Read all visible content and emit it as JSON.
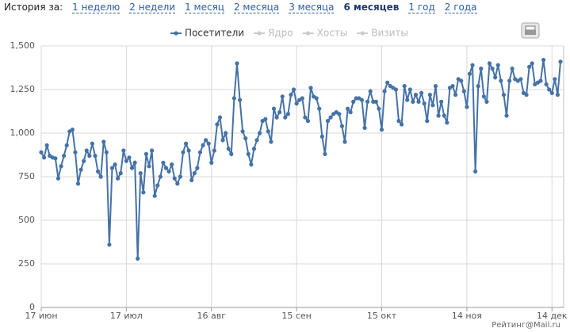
{
  "header": {
    "label": "История за:",
    "periods": [
      "1 неделю",
      "2 недели",
      "1 месяц",
      "2 месяца",
      "3 месяца",
      "6 месяцев",
      "1 год",
      "2 года"
    ],
    "selected_period": 5
  },
  "chart_data": {
    "type": "line",
    "categories": [
      "17 июн",
      null,
      null,
      null,
      null,
      null,
      null,
      null,
      null,
      null,
      null,
      null,
      null,
      null,
      null,
      null,
      null,
      null,
      null,
      null,
      null,
      null,
      null,
      null,
      null,
      null,
      null,
      null,
      null,
      null,
      "17 июл",
      null,
      null,
      null,
      null,
      null,
      null,
      null,
      null,
      null,
      null,
      null,
      null,
      null,
      null,
      null,
      null,
      null,
      null,
      null,
      null,
      null,
      null,
      null,
      null,
      null,
      null,
      null,
      null,
      null,
      "16 авг",
      null,
      null,
      null,
      null,
      null,
      null,
      null,
      null,
      null,
      null,
      null,
      null,
      null,
      null,
      null,
      null,
      null,
      null,
      null,
      null,
      null,
      null,
      null,
      null,
      null,
      null,
      null,
      null,
      null,
      "15 сен",
      null,
      null,
      null,
      null,
      null,
      null,
      null,
      null,
      null,
      null,
      null,
      null,
      null,
      null,
      null,
      null,
      null,
      null,
      null,
      null,
      null,
      null,
      null,
      null,
      null,
      null,
      null,
      null,
      null,
      "15 окт",
      null,
      null,
      null,
      null,
      null,
      null,
      null,
      null,
      null,
      null,
      null,
      null,
      null,
      null,
      null,
      null,
      null,
      null,
      null,
      null,
      null,
      null,
      null,
      null,
      null,
      null,
      null,
      null,
      null,
      "14 ноя",
      null,
      null,
      null,
      null,
      null,
      null,
      null,
      null,
      null,
      null,
      null,
      null,
      null,
      null,
      null,
      null,
      null,
      null,
      null,
      null,
      null,
      null,
      null,
      null,
      null,
      null,
      null,
      null,
      null,
      "14 дек",
      null,
      null,
      null
    ],
    "series": [
      {
        "name": "Посетители",
        "color": "#4572a7",
        "values": [
          890,
          860,
          930,
          870,
          860,
          855,
          740,
          810,
          870,
          930,
          1010,
          1020,
          890,
          710,
          790,
          840,
          900,
          870,
          940,
          870,
          780,
          750,
          950,
          890,
          360,
          800,
          820,
          740,
          770,
          900,
          840,
          860,
          800,
          830,
          280,
          770,
          660,
          880,
          810,
          900,
          640,
          700,
          750,
          830,
          800,
          780,
          820,
          740,
          710,
          750,
          890,
          940,
          900,
          730,
          770,
          800,
          890,
          930,
          960,
          940,
          830,
          900,
          1050,
          1090,
          960,
          1000,
          910,
          880,
          1200,
          1400,
          1190,
          1010,
          970,
          880,
          820,
          910,
          960,
          1000,
          1070,
          1080,
          1010,
          950,
          1140,
          1090,
          1120,
          1210,
          1090,
          1110,
          1220,
          1250,
          1170,
          1190,
          1200,
          1090,
          1070,
          1260,
          1210,
          1200,
          1140,
          980,
          880,
          1070,
          1090,
          1110,
          1120,
          1110,
          1040,
          950,
          1140,
          1120,
          1180,
          1200,
          1200,
          1190,
          1030,
          1180,
          1240,
          1180,
          1180,
          1140,
          1020,
          1240,
          1290,
          1270,
          1260,
          1250,
          1070,
          1050,
          1270,
          1190,
          1250,
          1180,
          1220,
          1180,
          1230,
          1170,
          1070,
          1220,
          1160,
          1270,
          1100,
          1180,
          1100,
          1060,
          1260,
          1270,
          1220,
          1310,
          1300,
          1240,
          1150,
          1340,
          1390,
          780,
          1270,
          1370,
          1210,
          1180,
          1400,
          1370,
          1320,
          1390,
          1300,
          1220,
          1100,
          1300,
          1370,
          1310,
          1300,
          1310,
          1230,
          1220,
          1380,
          1400,
          1280,
          1290,
          1300,
          1420,
          1280,
          1250,
          1230,
          1310,
          1220,
          1410
        ]
      }
    ],
    "inactive_series": [
      "Ядро",
      "Хосты",
      "Визиты"
    ],
    "inactive_color": "#cccccc",
    "ylim": [
      0,
      1500
    ],
    "yticks": [
      0,
      250,
      500,
      750,
      {
        "value": 1000,
        "label": "1,000"
      },
      {
        "value": 1250,
        "label": "1,250"
      },
      {
        "value": 1500,
        "label": "1,500"
      }
    ],
    "grid": true,
    "legend": "top"
  },
  "credit": "Рейтинг@Mail.ru"
}
